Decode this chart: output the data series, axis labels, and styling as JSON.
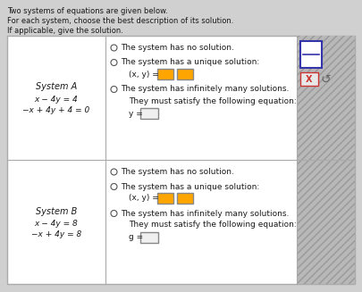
{
  "bg_color": "#d0d0d0",
  "header_text": [
    "Two systems of equations are given below.",
    "For each system, choose the best description of its solution.",
    "If applicable, give the solution."
  ],
  "system_a_label": "System A",
  "system_a_eq1": "x − 4y = 4",
  "system_a_eq2": "−x + 4y + 4 = 0",
  "system_b_label": "System B",
  "system_b_eq1": "x − 4y = 8",
  "system_b_eq2": "−x + 4y = 8",
  "option_no_sol": "The system has no solution.",
  "option_unique": "The system has a unique solution:",
  "option_xy": "(x, y) =",
  "option_inf": "The system has infinitely many solutions.",
  "option_satisfy": "They must satisfy the following equation:",
  "option_y_eq": "y =",
  "option_g_eq": "g =",
  "table_border": "#aaaaaa",
  "text_color": "#1a1a1a",
  "input_box_color": "#ffa500",
  "right_panel_bg": "#b8b8b8",
  "hatch_color": "#999999",
  "fraction_box_color": "#3333aa",
  "x_button_color": "#cc3333"
}
